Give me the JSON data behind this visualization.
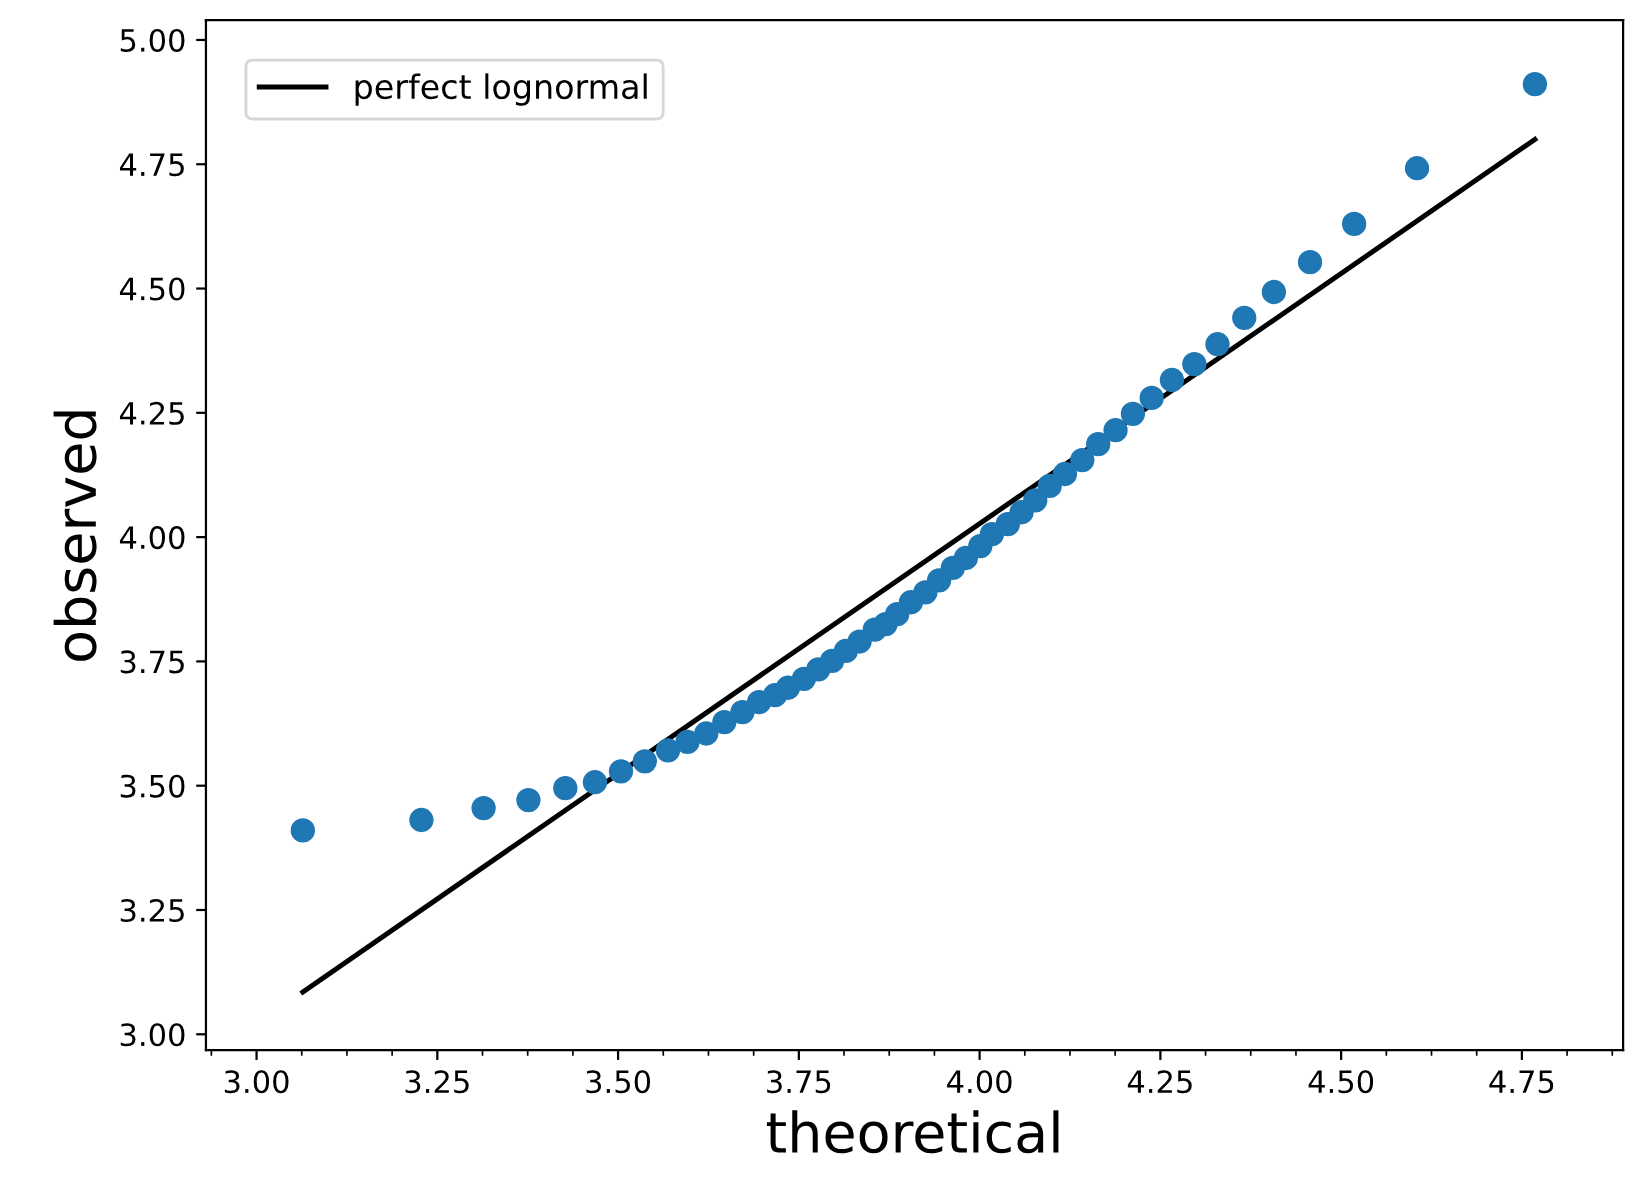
{
  "chart_data": {
    "type": "scatter",
    "xlabel": "theoretical",
    "ylabel": "observed",
    "xlim": [
      2.93,
      4.89
    ],
    "ylim": [
      2.968,
      5.04
    ],
    "xticks": [
      {
        "value": 3.0,
        "label": "3.00"
      },
      {
        "value": 3.25,
        "label": "3.25"
      },
      {
        "value": 3.5,
        "label": "3.50"
      },
      {
        "value": 3.75,
        "label": "3.75"
      },
      {
        "value": 4.0,
        "label": "4.00"
      },
      {
        "value": 4.25,
        "label": "4.25"
      },
      {
        "value": 4.5,
        "label": "4.50"
      },
      {
        "value": 4.75,
        "label": "4.75"
      }
    ],
    "yticks": [
      {
        "value": 3.0,
        "label": "3.00"
      },
      {
        "value": 3.25,
        "label": "3.25"
      },
      {
        "value": 3.5,
        "label": "3.50"
      },
      {
        "value": 3.75,
        "label": "3.75"
      },
      {
        "value": 4.0,
        "label": "4.00"
      },
      {
        "value": 4.25,
        "label": "4.25"
      },
      {
        "value": 4.5,
        "label": "4.50"
      },
      {
        "value": 4.75,
        "label": "4.75"
      },
      {
        "value": 5.0,
        "label": "5.00"
      }
    ],
    "grid": false,
    "legend": "top left",
    "marker": "circle",
    "series": [
      {
        "color": "#1f77b4",
        "x": [
          3.064,
          3.228,
          3.314,
          3.376,
          3.427,
          3.468,
          3.504,
          3.537,
          3.569,
          3.596,
          3.622,
          3.647,
          3.672,
          3.695,
          3.717,
          3.735,
          3.757,
          3.777,
          3.796,
          3.815,
          3.834,
          3.855,
          3.87,
          3.886,
          3.905,
          3.925,
          3.944,
          3.963,
          3.981,
          4.001,
          4.017,
          4.039,
          4.058,
          4.077,
          4.097,
          4.118,
          4.142,
          4.164,
          4.188,
          4.212,
          4.238,
          4.266,
          4.297,
          4.329,
          4.366,
          4.407,
          4.457,
          4.518,
          4.605,
          4.768
        ],
        "values": [
          3.41,
          3.431,
          3.455,
          3.471,
          3.495,
          3.507,
          3.529,
          3.549,
          3.571,
          3.588,
          3.605,
          3.628,
          3.648,
          3.668,
          3.682,
          3.697,
          3.715,
          3.734,
          3.751,
          3.771,
          3.79,
          3.814,
          3.825,
          3.845,
          3.869,
          3.889,
          3.913,
          3.938,
          3.958,
          3.982,
          4.006,
          4.026,
          4.05,
          4.074,
          4.103,
          4.127,
          4.155,
          4.187,
          4.215,
          4.248,
          4.28,
          4.316,
          4.348,
          4.388,
          4.441,
          4.493,
          4.553,
          4.63,
          4.742,
          4.911
        ]
      },
      {
        "type": "line",
        "name": "perfect lognormal",
        "color": "#000000",
        "marker": "none",
        "line_style": "solid",
        "x": [
          3.064,
          4.768
        ],
        "values": [
          3.085,
          4.8
        ]
      }
    ]
  }
}
